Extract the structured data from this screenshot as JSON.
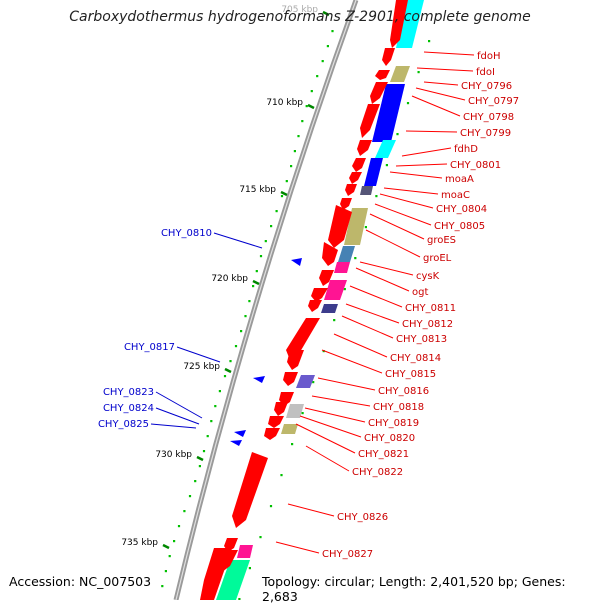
{
  "title": "Carboxydothermus hydrogenoformans Z-2901, complete genome",
  "accession": "Accession: NC_007503",
  "topology": "Topology: circular; Length: 2,401,520 bp; Genes: 2,683",
  "colors": {
    "forward_gene": "#ff0000",
    "reverse_gene": "#0000ff",
    "backbone": "#888888",
    "ticks": "#008800",
    "gc": "#00c000"
  },
  "ticks": [
    "705 kbp",
    "710 kbp",
    "715 kbp",
    "720 kbp",
    "725 kbp",
    "730 kbp",
    "735 kbp"
  ],
  "left_labels": [
    "CHY_0810",
    "CHY_0817",
    "CHY_0823",
    "CHY_0824",
    "CHY_0825"
  ],
  "right_labels": [
    "fdoH",
    "fdoI",
    "CHY_0796",
    "CHY_0797",
    "CHY_0798",
    "CHY_0799",
    "fdhD",
    "CHY_0801",
    "moaA",
    "moaC",
    "CHY_0804",
    "CHY_0805",
    "groES",
    "groEL",
    "cysK",
    "ogt",
    "CHY_0811",
    "CHY_0812",
    "CHY_0813",
    "CHY_0814",
    "CHY_0815",
    "CHY_0816",
    "CHY_0818",
    "CHY_0819",
    "CHY_0820",
    "CHY_0821",
    "CHY_0822",
    "CHY_0826",
    "CHY_0827"
  ]
}
